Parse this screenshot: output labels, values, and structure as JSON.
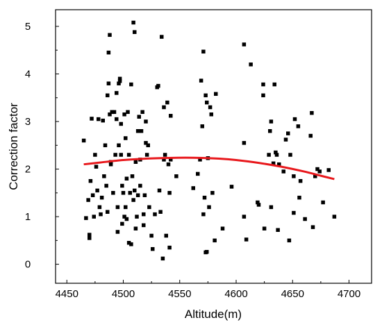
{
  "chart_data": {
    "type": "scatter",
    "xlabel": "Altitude(m)",
    "ylabel": "Correction factor",
    "xlim": [
      4440,
      4720
    ],
    "ylim": [
      -0.4,
      5.35
    ],
    "x_ticks": [
      4450,
      4500,
      4550,
      4600,
      4650,
      4700
    ],
    "y_ticks": [
      0,
      1,
      2,
      3,
      4,
      5
    ],
    "x_tick_labels": [
      "4450",
      "4500",
      "4550",
      "4600",
      "4650",
      "4700"
    ],
    "y_tick_labels": [
      "0",
      "1",
      "2",
      "3",
      "4",
      "5"
    ],
    "grid": false,
    "series": [
      {
        "kind": "scatter",
        "color": "#000000",
        "marker": "square",
        "points": [
          [
            4465,
            2.6
          ],
          [
            4467,
            0.97
          ],
          [
            4469,
            1.35
          ],
          [
            4470,
            0.62
          ],
          [
            4470,
            0.55
          ],
          [
            4471,
            1.75
          ],
          [
            4472,
            3.06
          ],
          [
            4473,
            1.45
          ],
          [
            4474,
            1.0
          ],
          [
            4475,
            2.3
          ],
          [
            4476,
            2.05
          ],
          [
            4477,
            1.55
          ],
          [
            4478,
            3.05
          ],
          [
            4479,
            1.2
          ],
          [
            4480,
            1.05
          ],
          [
            4481,
            1.4
          ],
          [
            4482,
            3.02
          ],
          [
            4483,
            1.85
          ],
          [
            4484,
            2.5
          ],
          [
            4485,
            1.65
          ],
          [
            4486,
            1.1
          ],
          [
            4486,
            3.55
          ],
          [
            4487,
            4.45
          ],
          [
            4487,
            3.8
          ],
          [
            4488,
            4.82
          ],
          [
            4488,
            3.15
          ],
          [
            4489,
            2.15
          ],
          [
            4489,
            2.1
          ],
          [
            4490,
            3.2
          ],
          [
            4491,
            1.5
          ],
          [
            4492,
            3.2
          ],
          [
            4493,
            2.3
          ],
          [
            4494,
            3.6
          ],
          [
            4494,
            3.05
          ],
          [
            4495,
            1.2
          ],
          [
            4495,
            0.68
          ],
          [
            4496,
            3.8
          ],
          [
            4496,
            2.5
          ],
          [
            4497,
            3.85
          ],
          [
            4497,
            3.9
          ],
          [
            4498,
            2.95
          ],
          [
            4498,
            2.3
          ],
          [
            4499,
            1.65
          ],
          [
            4499,
            0.85
          ],
          [
            4500,
            1.5
          ],
          [
            4501,
            1.0
          ],
          [
            4501,
            3.15
          ],
          [
            4502,
            1.2
          ],
          [
            4502,
            2.65
          ],
          [
            4503,
            1.8
          ],
          [
            4503,
            0.95
          ],
          [
            4504,
            3.2
          ],
          [
            4505,
            2.3
          ],
          [
            4505,
            0.45
          ],
          [
            4506,
            1.5
          ],
          [
            4507,
            0.42
          ],
          [
            4507,
            3.78
          ],
          [
            4508,
            1.85
          ],
          [
            4509,
            5.08
          ],
          [
            4509,
            1.35
          ],
          [
            4510,
            4.88
          ],
          [
            4510,
            1.55
          ],
          [
            4511,
            2.15
          ],
          [
            4511,
            0.75
          ],
          [
            4512,
            1.0
          ],
          [
            4513,
            1.45
          ],
          [
            4513,
            2.8
          ],
          [
            4514,
            3.1
          ],
          [
            4515,
            2.2
          ],
          [
            4515,
            1.65
          ],
          [
            4516,
            2.8
          ],
          [
            4517,
            3.2
          ],
          [
            4518,
            1.05
          ],
          [
            4518,
            0.82
          ],
          [
            4519,
            1.45
          ],
          [
            4520,
            3.0
          ],
          [
            4520,
            2.55
          ],
          [
            4521,
            2.3
          ],
          [
            4522,
            2.5
          ],
          [
            4523,
            1.2
          ],
          [
            4525,
            0.6
          ],
          [
            4526,
            0.32
          ],
          [
            4528,
            1.05
          ],
          [
            4530,
            3.72
          ],
          [
            4531,
            3.75
          ],
          [
            4532,
            1.55
          ],
          [
            4533,
            1.1
          ],
          [
            4534,
            4.78
          ],
          [
            4535,
            0.12
          ],
          [
            4536,
            2.2
          ],
          [
            4536,
            3.3
          ],
          [
            4537,
            2.3
          ],
          [
            4538,
            0.6
          ],
          [
            4539,
            3.4
          ],
          [
            4540,
            2.1
          ],
          [
            4541,
            1.5
          ],
          [
            4541,
            0.35
          ],
          [
            4542,
            2.2
          ],
          [
            4542,
            3.12
          ],
          [
            4547,
            1.85
          ],
          [
            4562,
            1.6
          ],
          [
            4566,
            1.9
          ],
          [
            4568,
            2.2
          ],
          [
            4569,
            3.86
          ],
          [
            4570,
            2.9
          ],
          [
            4571,
            1.05
          ],
          [
            4571,
            4.47
          ],
          [
            4572,
            1.4
          ],
          [
            4573,
            0.25
          ],
          [
            4573,
            3.55
          ],
          [
            4574,
            3.4
          ],
          [
            4574,
            0.26
          ],
          [
            4575,
            2.23
          ],
          [
            4576,
            1.2
          ],
          [
            4577,
            3.3
          ],
          [
            4578,
            3.15
          ],
          [
            4579,
            1.5
          ],
          [
            4581,
            0.5
          ],
          [
            4582,
            3.58
          ],
          [
            4588,
            0.75
          ],
          [
            4596,
            1.63
          ],
          [
            4607,
            4.62
          ],
          [
            4607,
            2.55
          ],
          [
            4607,
            1.0
          ],
          [
            4609,
            0.52
          ],
          [
            4613,
            4.2
          ],
          [
            4619,
            1.3
          ],
          [
            4620,
            1.25
          ],
          [
            4624,
            3.78
          ],
          [
            4624,
            3.55
          ],
          [
            4625,
            0.75
          ],
          [
            4629,
            2.3
          ],
          [
            4630,
            2.8
          ],
          [
            4631,
            3.0
          ],
          [
            4631,
            1.2
          ],
          [
            4633,
            2.12
          ],
          [
            4634,
            3.78
          ],
          [
            4635,
            2.35
          ],
          [
            4636,
            2.3
          ],
          [
            4637,
            0.72
          ],
          [
            4638,
            2.1
          ],
          [
            4642,
            1.95
          ],
          [
            4644,
            2.62
          ],
          [
            4646,
            2.75
          ],
          [
            4647,
            0.5
          ],
          [
            4648,
            2.3
          ],
          [
            4651,
            1.08
          ],
          [
            4651,
            1.85
          ],
          [
            4652,
            3.05
          ],
          [
            4655,
            2.9
          ],
          [
            4656,
            1.4
          ],
          [
            4657,
            1.75
          ],
          [
            4661,
            0.95
          ],
          [
            4666,
            2.7
          ],
          [
            4667,
            3.18
          ],
          [
            4668,
            0.78
          ],
          [
            4670,
            1.85
          ],
          [
            4672,
            2.0
          ],
          [
            4674,
            1.95
          ],
          [
            4677,
            1.3
          ],
          [
            4682,
            1.98
          ],
          [
            4687,
            1.0
          ]
        ]
      },
      {
        "kind": "fit-line",
        "color": "#e8181c",
        "x": [
          4465,
          4480,
          4500,
          4520,
          4540,
          4555,
          4570,
          4585,
          4600,
          4620,
          4640,
          4660,
          4675,
          4687
        ],
        "y": [
          2.1,
          2.14,
          2.19,
          2.22,
          2.235,
          2.24,
          2.235,
          2.22,
          2.19,
          2.13,
          2.05,
          1.95,
          1.86,
          1.79
        ]
      }
    ]
  }
}
